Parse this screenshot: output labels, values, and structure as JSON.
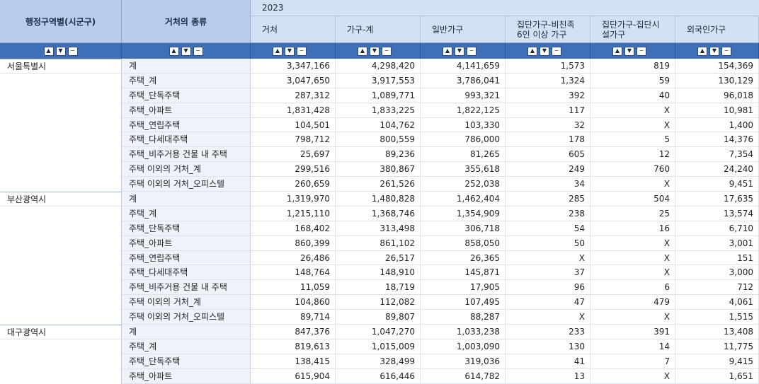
{
  "header": {
    "region_col": "행정구역별(시군구)",
    "type_col": "거처의 종류",
    "year": "2023",
    "columns": [
      "거처",
      "가구-계",
      "일반가구",
      "집단가구-비친족\n6인 이상 가구",
      "집단가구-집단시\n설가구",
      "외국인가구"
    ]
  },
  "controls": {
    "up": "▲",
    "down": "▼",
    "remove": "−"
  },
  "rows": [
    {
      "region": "서울특별시",
      "type": "계",
      "v": [
        "3,347,166",
        "4,298,420",
        "4,141,659",
        "1,573",
        "819",
        "154,369"
      ]
    },
    {
      "region": "",
      "type": "주택_계",
      "v": [
        "3,047,650",
        "3,917,553",
        "3,786,041",
        "1,324",
        "59",
        "130,129"
      ]
    },
    {
      "region": "",
      "type": "주택_단독주택",
      "v": [
        "287,312",
        "1,089,771",
        "993,321",
        "392",
        "40",
        "96,018"
      ]
    },
    {
      "region": "",
      "type": "주택_아파트",
      "v": [
        "1,831,428",
        "1,833,225",
        "1,822,125",
        "117",
        "X",
        "10,981"
      ]
    },
    {
      "region": "",
      "type": "주택_연립주택",
      "v": [
        "104,501",
        "104,762",
        "103,330",
        "32",
        "X",
        "1,400"
      ]
    },
    {
      "region": "",
      "type": "주택_다세대주택",
      "v": [
        "798,712",
        "800,559",
        "786,000",
        "178",
        "5",
        "14,376"
      ]
    },
    {
      "region": "",
      "type": "주택_비주거용 건물 내 주택",
      "v": [
        "25,697",
        "89,236",
        "81,265",
        "605",
        "12",
        "7,354"
      ]
    },
    {
      "region": "",
      "type": "주택 이외의 거처_계",
      "v": [
        "299,516",
        "380,867",
        "355,618",
        "249",
        "760",
        "24,240"
      ]
    },
    {
      "region": "",
      "type": "주택 이외의 거처_오피스텔",
      "v": [
        "260,659",
        "261,526",
        "252,038",
        "34",
        "X",
        "9,451"
      ]
    },
    {
      "region": "부산광역시",
      "type": "계",
      "v": [
        "1,319,970",
        "1,480,828",
        "1,462,404",
        "285",
        "504",
        "17,635"
      ]
    },
    {
      "region": "",
      "type": "주택_계",
      "v": [
        "1,215,110",
        "1,368,746",
        "1,354,909",
        "238",
        "25",
        "13,574"
      ]
    },
    {
      "region": "",
      "type": "주택_단독주택",
      "v": [
        "168,402",
        "313,498",
        "306,718",
        "54",
        "16",
        "6,710"
      ]
    },
    {
      "region": "",
      "type": "주택_아파트",
      "v": [
        "860,399",
        "861,102",
        "858,050",
        "50",
        "X",
        "3,001"
      ]
    },
    {
      "region": "",
      "type": "주택_연립주택",
      "v": [
        "26,486",
        "26,517",
        "26,365",
        "X",
        "X",
        "151"
      ]
    },
    {
      "region": "",
      "type": "주택_다세대주택",
      "v": [
        "148,764",
        "148,910",
        "145,871",
        "37",
        "X",
        "3,000"
      ]
    },
    {
      "region": "",
      "type": "주택_비주거용 건물 내 주택",
      "v": [
        "11,059",
        "18,719",
        "17,905",
        "96",
        "6",
        "712"
      ]
    },
    {
      "region": "",
      "type": "주택 이외의 거처_계",
      "v": [
        "104,860",
        "112,082",
        "107,495",
        "47",
        "479",
        "4,061"
      ]
    },
    {
      "region": "",
      "type": "주택 이외의 거처_오피스텔",
      "v": [
        "89,714",
        "89,807",
        "88,287",
        "X",
        "X",
        "1,515"
      ]
    },
    {
      "region": "대구광역시",
      "type": "계",
      "v": [
        "847,376",
        "1,047,270",
        "1,033,238",
        "233",
        "391",
        "13,408"
      ]
    },
    {
      "region": "",
      "type": "주택_계",
      "v": [
        "819,613",
        "1,015,009",
        "1,003,090",
        "130",
        "14",
        "11,775"
      ]
    },
    {
      "region": "",
      "type": "주택_단독주택",
      "v": [
        "138,415",
        "328,499",
        "319,036",
        "41",
        "7",
        "9,415"
      ]
    },
    {
      "region": "",
      "type": "주택_아파트",
      "v": [
        "615,904",
        "616,446",
        "614,782",
        "13",
        "X",
        "1,651"
      ]
    }
  ]
}
